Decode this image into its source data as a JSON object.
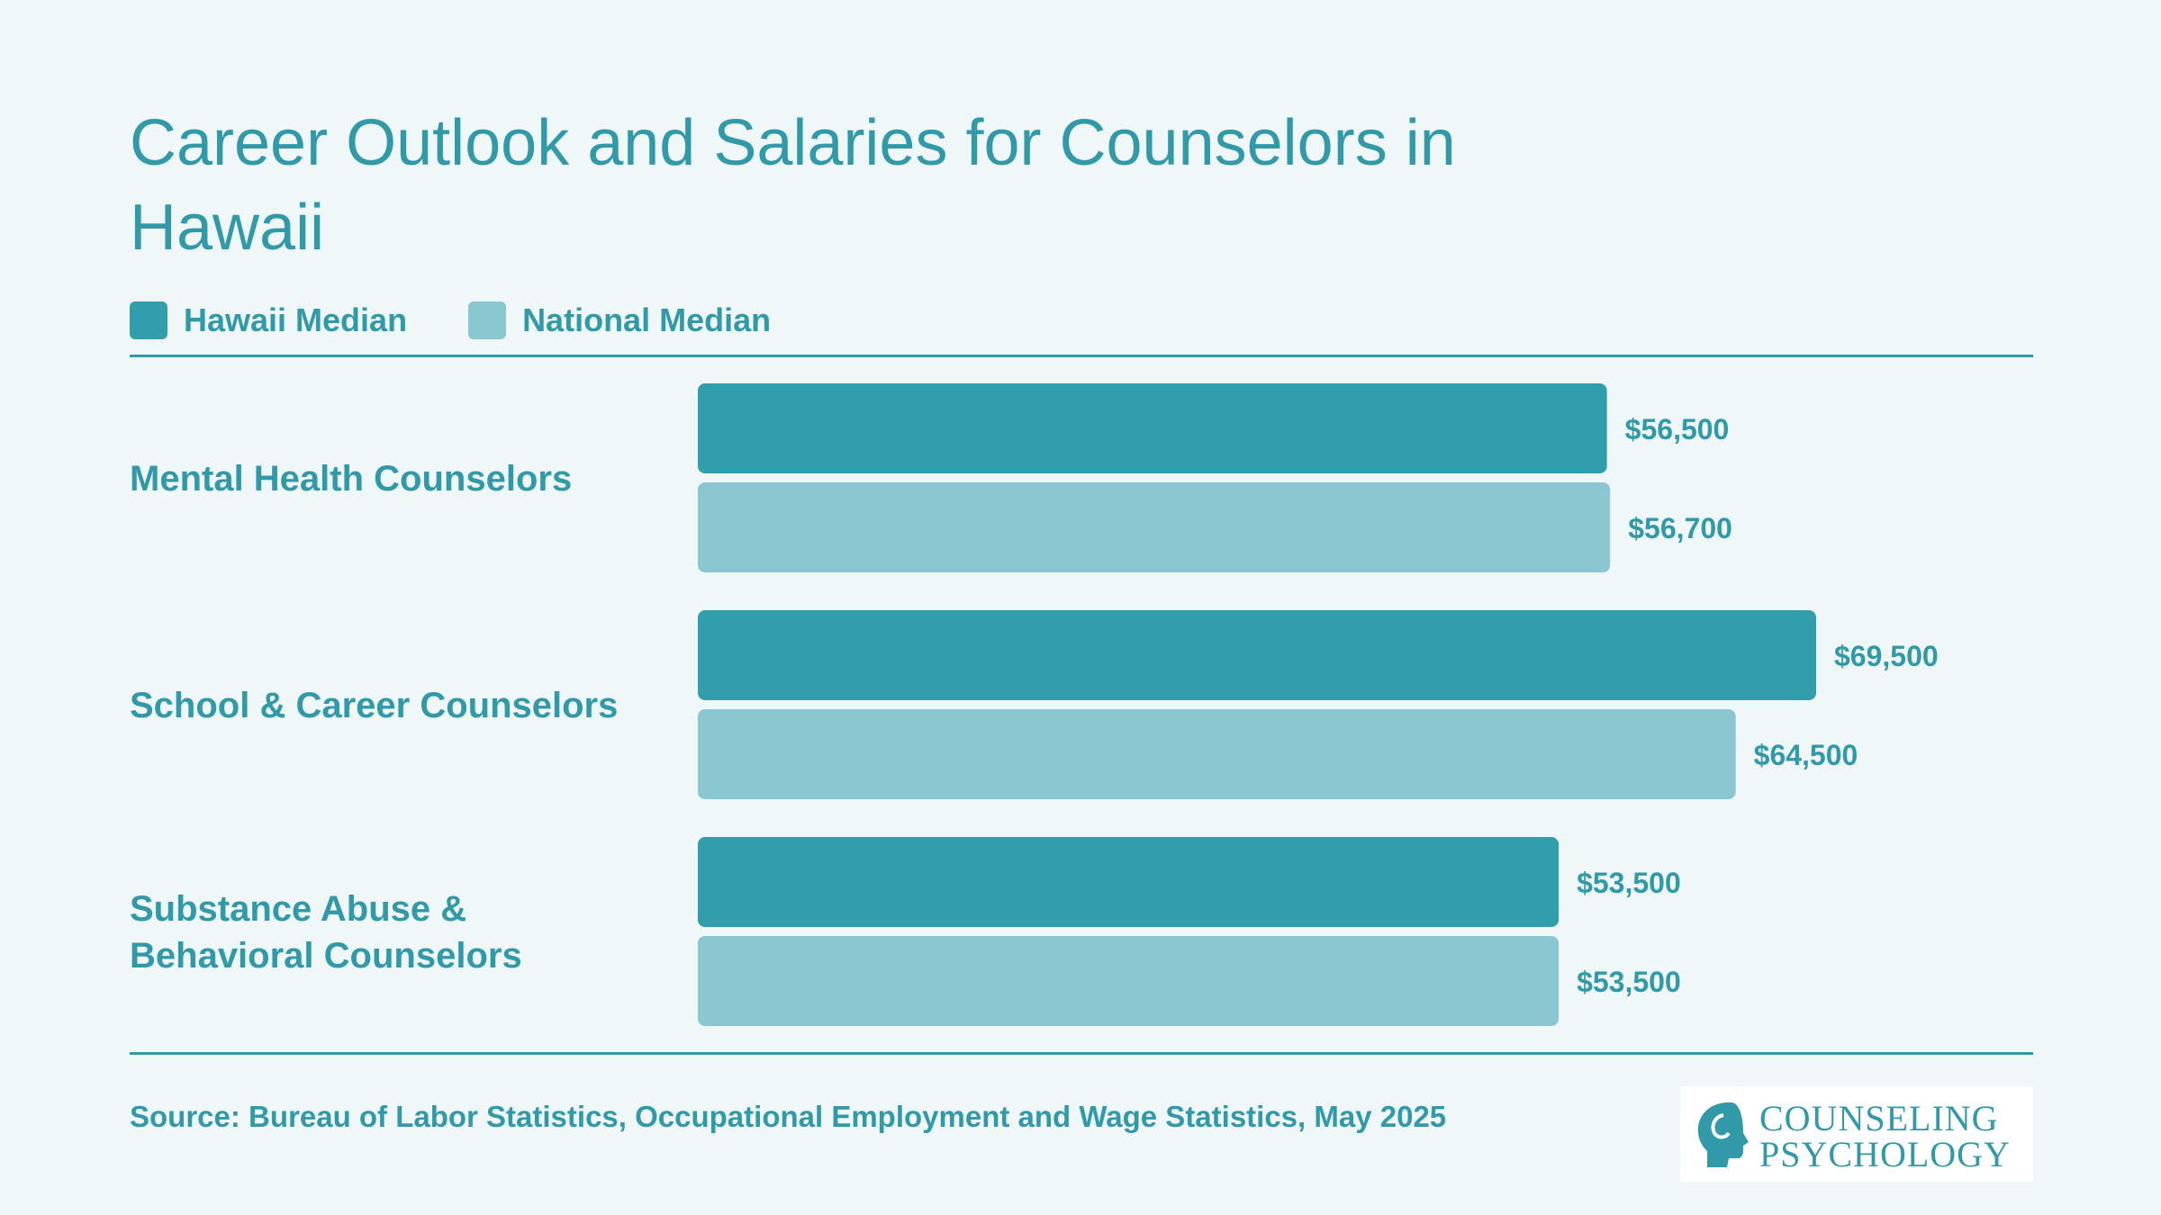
{
  "title": "Career Outlook and Salaries for Counselors in Hawaii",
  "legend": [
    {
      "label": "Hawaii Median",
      "color": "#329eab"
    },
    {
      "label": "National Median",
      "color": "#8bc7d0"
    }
  ],
  "source": "Source: Bureau of Labor Statistics, Occupational Employment and Wage Statistics, May 2025",
  "logo": {
    "line1": "COUNSELING",
    "line2": "PSYCHOLOGY"
  },
  "colors": {
    "accent": "#3199a8",
    "background": "#eff7f8"
  },
  "chart_data": {
    "type": "bar",
    "orientation": "horizontal",
    "categories": [
      "Mental Health Counselors",
      "School & Career Counselors",
      "Substance Abuse & Behavioral Counselors"
    ],
    "series": [
      {
        "name": "Hawaii Median",
        "values": [
          56500,
          69500,
          53500
        ],
        "labels": [
          "$56,500",
          "$69,500",
          "$53,500"
        ],
        "color": "#329eab"
      },
      {
        "name": "National Median",
        "values": [
          56700,
          64500,
          53500
        ],
        "labels": [
          "$56,700",
          "$64,500",
          "$53,500"
        ],
        "color": "#8bc7d0"
      }
    ],
    "title": "Career Outlook and Salaries for Counselors in Hawaii",
    "xlabel": "",
    "ylabel": "",
    "xlim": [
      0,
      69500
    ],
    "grid": false,
    "legend_position": "top-left"
  }
}
